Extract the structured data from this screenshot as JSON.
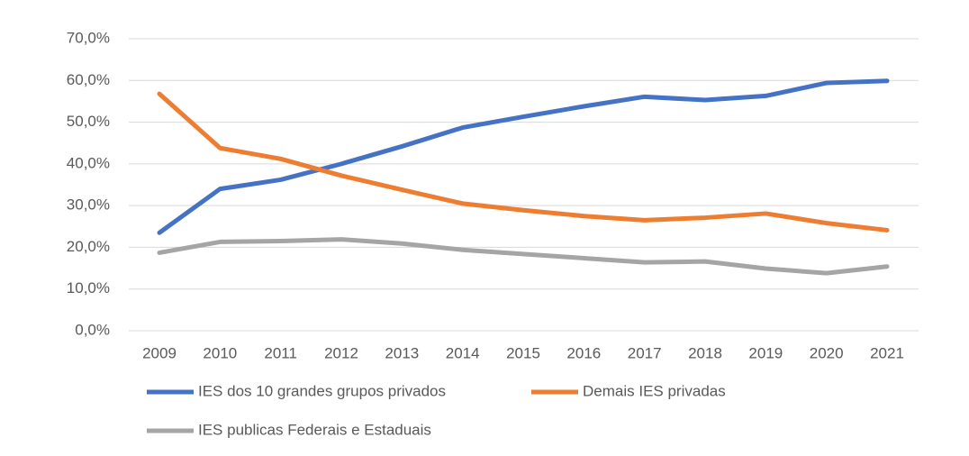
{
  "chart_data": {
    "type": "line",
    "categories": [
      "2009",
      "2010",
      "2011",
      "2012",
      "2013",
      "2014",
      "2015",
      "2016",
      "2017",
      "2018",
      "2019",
      "2020",
      "2021"
    ],
    "series": [
      {
        "name": "IES dos 10 grandes grupos privados",
        "color": "#4472c4",
        "values": [
          23.5,
          34.0,
          36.2,
          40.0,
          44.2,
          48.7,
          51.3,
          53.8,
          56.1,
          55.3,
          56.3,
          59.4,
          59.9
        ]
      },
      {
        "name": "Demais IES privadas",
        "color": "#ed7d31",
        "values": [
          56.8,
          43.8,
          41.2,
          37.2,
          33.8,
          30.5,
          28.9,
          27.5,
          26.5,
          27.1,
          28.1,
          25.8,
          24.1
        ]
      },
      {
        "name": "IES publicas Federais e Estaduais",
        "color": "#a5a5a5",
        "values": [
          18.7,
          21.3,
          21.5,
          21.9,
          20.9,
          19.4,
          18.4,
          17.4,
          16.4,
          16.6,
          14.9,
          13.8,
          15.4
        ]
      }
    ],
    "ylim": [
      0,
      70
    ],
    "yticks": [
      {
        "value": 0,
        "label": "0,0%"
      },
      {
        "value": 10,
        "label": "10,0%"
      },
      {
        "value": 20,
        "label": "20,0%"
      },
      {
        "value": 30,
        "label": "30,0%"
      },
      {
        "value": 40,
        "label": "40,0%"
      },
      {
        "value": 50,
        "label": "50,0%"
      },
      {
        "value": 60,
        "label": "60,0%"
      },
      {
        "value": 70,
        "label": "70,0%"
      }
    ],
    "grid": true,
    "legend": "bottom"
  }
}
